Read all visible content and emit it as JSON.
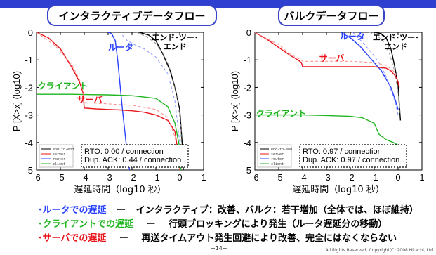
{
  "chart_data": [
    {
      "type": "line",
      "title": "インタラクティブデータフロー",
      "xlabel": "遅延時間（log10 秒）",
      "ylabel": "P [X>x] (log10)",
      "xlim": [
        -6,
        1
      ],
      "ylim": [
        -5,
        0
      ],
      "xticks": [
        "-6",
        "-5",
        "-4",
        "-3",
        "-2",
        "-1",
        "0",
        "1"
      ],
      "yticks": [
        "0",
        "-1",
        "-2",
        "-3",
        "-4",
        "-5"
      ],
      "legend": {
        "placement": "bottom-left",
        "entries": [
          "end-to-end",
          "server",
          "router",
          "client"
        ]
      },
      "stats_box": [
        "RTO: 0.00 / connection",
        "Dup. ACK: 0.44 / connection"
      ],
      "annotations": [
        {
          "text": "エンド･ツー･エンド",
          "line1": "エンド･ツー･",
          "line2": "エンド",
          "color": "#000000"
        },
        {
          "text": "ルータ",
          "color": "#2a40ff"
        },
        {
          "text": "クライアント",
          "color": "#1fb51f"
        },
        {
          "text": "サーバ",
          "color": "#e8151b"
        }
      ],
      "series": [
        {
          "key": "end-to-end",
          "color": "#000000",
          "dashed": false,
          "x": [
            -1.7,
            -1.3,
            -1.0,
            -0.7,
            -0.4,
            -0.2,
            0.0,
            0.1,
            0.15
          ],
          "y": [
            0.0,
            -0.1,
            -0.3,
            -0.8,
            -1.4,
            -2.0,
            -2.8,
            -4.0,
            -5.0
          ]
        },
        {
          "key": "end-to-end",
          "color": "#888888",
          "dashed": true,
          "x": [
            -1.8,
            -1.4,
            -1.0,
            -0.6,
            -0.3,
            -0.1,
            0.05,
            0.1
          ],
          "y": [
            0.0,
            -0.15,
            -0.4,
            -0.9,
            -1.6,
            -2.4,
            -3.4,
            -5.0
          ]
        },
        {
          "key": "router",
          "color": "#2a40ff",
          "dashed": false,
          "x": [
            -3.0,
            -2.85,
            -2.7,
            -2.6,
            -2.5,
            -2.4,
            -2.3,
            -2.2,
            -2.1
          ],
          "y": [
            0.0,
            -0.05,
            -0.3,
            -1.0,
            -1.9,
            -2.8,
            -3.6,
            -4.4,
            -5.0
          ]
        },
        {
          "key": "router",
          "color": "#8a97ff",
          "dashed": true,
          "x": [
            -2.4,
            -2.2,
            -1.9,
            -1.5,
            -1.0,
            -0.5,
            -0.2,
            0.0
          ],
          "y": [
            -0.1,
            -0.3,
            -0.45,
            -0.6,
            -0.9,
            -1.5,
            -2.5,
            -4.0
          ]
        },
        {
          "key": "client",
          "color": "#1fb51f",
          "dashed": false,
          "x": [
            -6.0,
            -5.0,
            -4.5,
            -4.0,
            -3.0,
            -2.0,
            -1.0,
            -0.5,
            -0.2,
            0.0,
            0.05
          ],
          "y": [
            -2.25,
            -2.25,
            -2.25,
            -2.26,
            -2.27,
            -2.3,
            -2.4,
            -2.7,
            -3.3,
            -4.2,
            -5.0
          ]
        },
        {
          "key": "server",
          "color": "#e8151b",
          "dashed": false,
          "x": [
            -6.0,
            -5.5,
            -5.0,
            -4.5,
            -4.2,
            -4.05,
            -4.0,
            -3.5,
            -3.0,
            -2.5,
            -2.0,
            -1.5,
            -1.0,
            -0.5,
            -0.2,
            -0.05,
            0.0
          ],
          "y": [
            0.0,
            -0.2,
            -0.6,
            -1.3,
            -1.8,
            -2.2,
            -2.75,
            -2.78,
            -2.8,
            -2.82,
            -2.85,
            -2.9,
            -3.0,
            -3.2,
            -3.6,
            -4.5,
            -5.0
          ]
        },
        {
          "key": "server",
          "color": "#ff8a8a",
          "dashed": true,
          "x": [
            -6.0,
            -5.2,
            -4.5,
            -4.1,
            -4.0,
            -3.0,
            -2.0,
            -1.0,
            -0.5,
            -0.2,
            0.0
          ],
          "y": [
            0.0,
            -0.5,
            -1.2,
            -1.9,
            -2.55,
            -2.6,
            -2.65,
            -2.8,
            -3.1,
            -3.8,
            -5.0
          ]
        }
      ]
    },
    {
      "type": "line",
      "title": "バルクデータフロー",
      "xlabel": "遅延時間（log10 秒）",
      "ylabel": "P [X>x] (log10)",
      "xlim": [
        -6,
        1
      ],
      "ylim": [
        -5,
        0
      ],
      "xticks": [
        "-6",
        "-5",
        "-4",
        "-3",
        "-2",
        "-1",
        "0",
        "1"
      ],
      "yticks": [
        "0",
        "-1",
        "-2",
        "-3",
        "-4",
        "-5"
      ],
      "legend": {
        "placement": "bottom-left",
        "entries": [
          "end-to-end",
          "server",
          "router",
          "client"
        ]
      },
      "stats_box": [
        "RTO: 0.97 / connection",
        "Dup. ACK: 0.97 / connection"
      ],
      "annotations": [
        {
          "text": "エンド･ツー･エンド",
          "line1": "エンド･ツー･",
          "line2": "エンド",
          "color": "#000000"
        },
        {
          "text": "ルータ",
          "color": "#2a40ff"
        },
        {
          "text": "サーバ",
          "color": "#e8151b"
        },
        {
          "text": "クライアント",
          "color": "#1fb51f"
        }
      ],
      "series": [
        {
          "key": "end-to-end",
          "color": "#000000",
          "dashed": false,
          "x": [
            -1.0,
            -0.7,
            -0.5,
            -0.3,
            -0.15,
            0.0,
            0.05,
            0.1
          ],
          "y": [
            0.0,
            -0.05,
            -0.2,
            -0.6,
            -1.2,
            -1.9,
            -2.6,
            -3.2
          ]
        },
        {
          "key": "end-to-end",
          "color": "#999999",
          "dashed": true,
          "x": [
            -1.2,
            -0.9,
            -0.6,
            -0.35,
            -0.15,
            0.0,
            0.1
          ],
          "y": [
            0.0,
            -0.1,
            -0.35,
            -0.8,
            -1.4,
            -2.2,
            -3.0
          ]
        },
        {
          "key": "router",
          "color": "#2a40ff",
          "dashed": false,
          "x": [
            -2.4,
            -2.0,
            -1.6,
            -1.3,
            -1.0,
            -0.7,
            -0.5,
            -0.3,
            -0.1,
            0.0
          ],
          "y": [
            0.0,
            -0.2,
            -0.5,
            -0.8,
            -1.1,
            -1.4,
            -1.7,
            -2.0,
            -2.5,
            -2.8
          ]
        },
        {
          "key": "router",
          "color": "#8a97ff",
          "dashed": true,
          "x": [
            -1.9,
            -1.5,
            -1.1,
            -0.8,
            -0.5,
            -0.3,
            -0.1,
            0.0
          ],
          "y": [
            0.0,
            -0.35,
            -0.75,
            -1.1,
            -1.6,
            -2.1,
            -2.6,
            -3.0
          ]
        },
        {
          "key": "client",
          "color": "#1fb51f",
          "dashed": false,
          "x": [
            -6.0,
            -5.0,
            -4.0,
            -3.0,
            -2.0,
            -1.5,
            -1.0,
            -0.8,
            -0.5,
            -0.2,
            0.0
          ],
          "y": [
            -3.0,
            -3.0,
            -3.0,
            -3.02,
            -3.05,
            -3.1,
            -3.3,
            -3.7,
            -3.9,
            -4.0,
            -4.1
          ]
        },
        {
          "key": "server",
          "color": "#e8151b",
          "dashed": false,
          "x": [
            -6.0,
            -5.5,
            -5.0,
            -4.5,
            -4.2,
            -4.05,
            -4.0,
            -3.0,
            -2.0,
            -1.0,
            -0.5,
            -0.3,
            -0.1,
            0.0,
            0.05
          ],
          "y": [
            0.0,
            -0.25,
            -0.55,
            -0.85,
            -1.0,
            -1.1,
            -1.25,
            -1.25,
            -1.25,
            -1.25,
            -1.3,
            -1.4,
            -1.6,
            -1.8,
            -2.0
          ]
        },
        {
          "key": "server",
          "color": "#ff8a8a",
          "dashed": true,
          "x": [
            -6.0,
            -5.0,
            -4.5,
            -4.1,
            -4.0,
            -3.0,
            -2.0,
            -1.0,
            -0.5,
            -0.2,
            0.0
          ],
          "y": [
            0.0,
            -0.45,
            -0.8,
            -0.98,
            -1.05,
            -1.05,
            -1.05,
            -1.1,
            -1.2,
            -1.4,
            -1.6
          ]
        }
      ]
    }
  ],
  "bullets": [
    {
      "prefix": "･ルータでの遅延",
      "dash": "ー",
      "text": "インタラクティブ：改善、バルク：若干増加（全体では、ほぼ維持）"
    },
    {
      "prefix": "･クライアントでの遅延",
      "dash": "ー",
      "text": "行頭ブロッキングにより発生（ルータ遅延分の移動）"
    },
    {
      "prefix": "･サーバでの遅延",
      "dash": "ー",
      "underlined": "再送タイムアウト発生回避",
      "text": "により改善、完全にはなくならない"
    }
  ],
  "footer": {
    "page": "−14−",
    "copyright": "All Rights Reserved, Copyright(C) 2008 Hitachi, Ltd."
  }
}
